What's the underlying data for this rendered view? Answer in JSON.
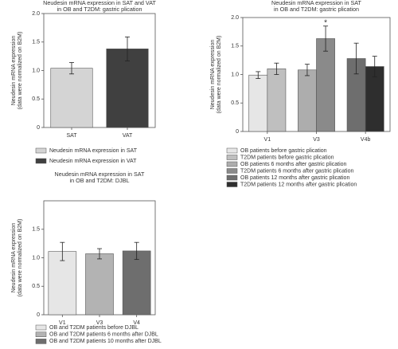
{
  "chart_data": [
    {
      "type": "bar",
      "title": [
        "Neudesin mRNA expression in SAT and VAT",
        "in OB and T2DM: gastric plication"
      ],
      "y_label": [
        "Neudesin mRNA expression",
        "(data were normalized on B2M)"
      ],
      "categories": [
        "SAT",
        "VAT"
      ],
      "series": [
        {
          "name": "Neudesin mRNA expression in SAT",
          "color": "#d4d4d4",
          "values": [
            1.04,
            null
          ],
          "errors": [
            0.1,
            null
          ]
        },
        {
          "name": "Neudesin mRNA expression in VAT",
          "color": "#404040",
          "values": [
            null,
            1.38
          ],
          "errors": [
            null,
            0.21
          ]
        }
      ],
      "ylim": [
        0,
        2
      ],
      "yticks": [
        0,
        0.5,
        {
          "value": 1,
          "label": "1.0"
        },
        1.5,
        {
          "value": 2,
          "label": "2.0"
        }
      ]
    },
    {
      "type": "bar",
      "title": [
        "Neudesin mRNA expression in SAT",
        "in OB and T2DM: gastric plication"
      ],
      "y_label": [
        "Neudesin mRNA expression",
        "(data were normalized on B2M)"
      ],
      "categories": [
        "V1",
        "V3",
        "V4b"
      ],
      "series": [
        {
          "name": "OB patients before gastric plication",
          "color": "#e6e6e6",
          "values": [
            0.99,
            null,
            null
          ],
          "errors": [
            0.06,
            null,
            null
          ]
        },
        {
          "name": "T2DM patients before gastric plication",
          "color": "#bfbfbf",
          "values": [
            1.1,
            null,
            null
          ],
          "errors": [
            0.1,
            null,
            null
          ]
        },
        {
          "name": "OB patients 6 months after gastric plication",
          "color": "#adadad",
          "values": [
            null,
            1.08,
            null
          ],
          "errors": [
            null,
            0.1,
            null
          ]
        },
        {
          "name": "T2DM patients 6 months after gastric plication",
          "color": "#8a8a8a",
          "values": [
            null,
            1.63,
            null
          ],
          "errors": [
            null,
            0.22,
            null
          ],
          "marker": "*"
        },
        {
          "name": "OB patients 12 months after gastric plication",
          "color": "#6e6e6e",
          "values": [
            null,
            null,
            1.28
          ],
          "errors": [
            null,
            null,
            0.27
          ]
        },
        {
          "name": "T2DM patients 12 months after gastric plication",
          "color": "#2e2e2e",
          "values": [
            null,
            null,
            1.14
          ],
          "errors": [
            null,
            null,
            0.18
          ]
        }
      ],
      "ylim": [
        0,
        2
      ],
      "yticks": [
        0,
        0.5,
        {
          "value": 1,
          "label": "1.0"
        },
        1.5,
        {
          "value": 2,
          "label": "2.0"
        }
      ]
    },
    {
      "type": "bar",
      "title": [
        "Neudesin mRNA expression in SAT",
        "in OB and T2DM: DJBL"
      ],
      "y_label": [
        "Neudesin mRNA expression",
        "(data were normalized on B2M)"
      ],
      "categories": [
        "V1",
        "V3",
        "V4"
      ],
      "series": [
        {
          "name": "OB and T2DM patients before DJBL",
          "color": "#e6e6e6",
          "values": [
            1.11,
            null,
            null
          ],
          "errors": [
            0.16,
            null,
            null
          ]
        },
        {
          "name": "OB and T2DM patients 6 months after DJBL",
          "color": "#b3b3b3",
          "values": [
            null,
            1.07,
            null
          ],
          "errors": [
            null,
            0.09,
            null
          ]
        },
        {
          "name": "OB and T2DM patients 10 months after DJBL",
          "color": "#6e6e6e",
          "values": [
            null,
            null,
            1.12
          ],
          "errors": [
            null,
            null,
            0.15
          ]
        }
      ],
      "ylim": [
        0,
        2
      ],
      "yticks": [
        0,
        0.5,
        {
          "value": 1,
          "label": "1.0"
        },
        1.5
      ]
    }
  ]
}
